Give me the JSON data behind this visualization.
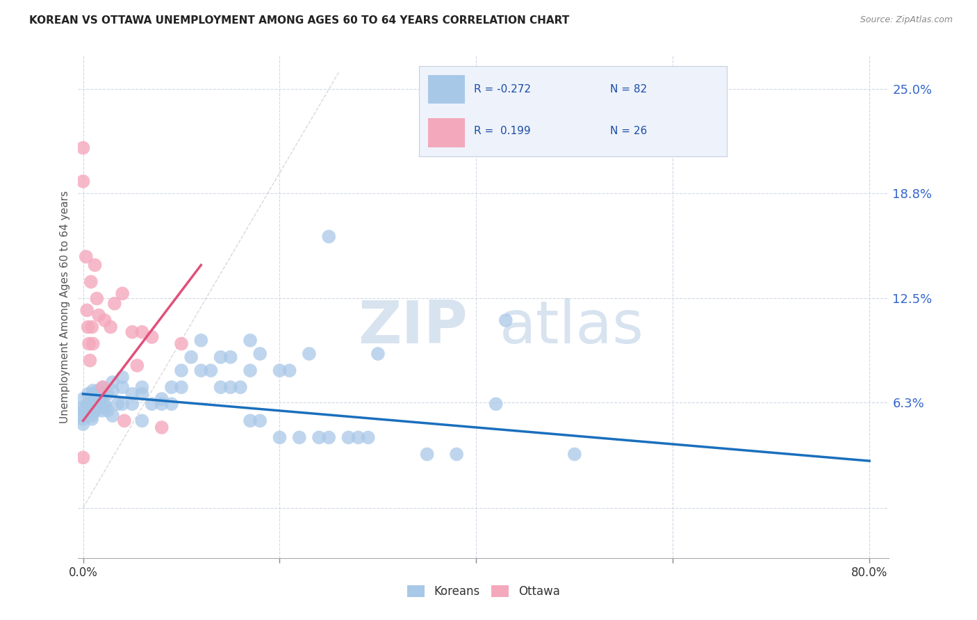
{
  "title": "KOREAN VS OTTAWA UNEMPLOYMENT AMONG AGES 60 TO 64 YEARS CORRELATION CHART",
  "source": "Source: ZipAtlas.com",
  "ylabel": "Unemployment Among Ages 60 to 64 years",
  "xlim": [
    -0.005,
    0.82
  ],
  "ylim": [
    -0.03,
    0.27
  ],
  "ytick_values": [
    0.0,
    0.063,
    0.125,
    0.188,
    0.25
  ],
  "ytick_labels": [
    "",
    "6.3%",
    "12.5%",
    "18.8%",
    "25.0%"
  ],
  "xtick_values": [
    0.0,
    0.2,
    0.4,
    0.6,
    0.8
  ],
  "xticklabels": [
    "0.0%",
    "",
    "",
    "",
    "80.0%"
  ],
  "koreans_R": -0.272,
  "koreans_N": 82,
  "ottawa_R": 0.199,
  "ottawa_N": 26,
  "korean_color": "#a8c8e8",
  "ottawa_color": "#f4a8bc",
  "korean_line_color": "#1a6fbd",
  "ottawa_line_color": "#e0507a",
  "diagonal_line_color": "#c8c8c8",
  "korean_x": [
    0.0,
    0.0,
    0.0,
    0.0,
    0.0,
    0.0,
    0.005,
    0.005,
    0.007,
    0.008,
    0.008,
    0.009,
    0.009,
    0.01,
    0.01,
    0.01,
    0.01,
    0.012,
    0.012,
    0.013,
    0.015,
    0.015,
    0.016,
    0.016,
    0.018,
    0.019,
    0.02,
    0.02,
    0.022,
    0.023,
    0.025,
    0.025,
    0.03,
    0.03,
    0.03,
    0.035,
    0.04,
    0.04,
    0.04,
    0.05,
    0.05,
    0.06,
    0.06,
    0.06,
    0.07,
    0.08,
    0.08,
    0.09,
    0.09,
    0.1,
    0.1,
    0.11,
    0.12,
    0.12,
    0.13,
    0.14,
    0.14,
    0.15,
    0.15,
    0.16,
    0.17,
    0.17,
    0.17,
    0.18,
    0.18,
    0.2,
    0.2,
    0.21,
    0.22,
    0.23,
    0.24,
    0.25,
    0.25,
    0.27,
    0.28,
    0.29,
    0.3,
    0.35,
    0.38,
    0.42,
    0.43,
    0.5
  ],
  "korean_y": [
    0.065,
    0.06,
    0.058,
    0.055,
    0.053,
    0.05,
    0.068,
    0.062,
    0.06,
    0.06,
    0.058,
    0.055,
    0.053,
    0.07,
    0.068,
    0.062,
    0.058,
    0.068,
    0.062,
    0.058,
    0.07,
    0.068,
    0.062,
    0.06,
    0.065,
    0.058,
    0.072,
    0.068,
    0.062,
    0.06,
    0.068,
    0.058,
    0.075,
    0.07,
    0.055,
    0.062,
    0.078,
    0.072,
    0.062,
    0.068,
    0.062,
    0.072,
    0.068,
    0.052,
    0.062,
    0.065,
    0.062,
    0.072,
    0.062,
    0.082,
    0.072,
    0.09,
    0.1,
    0.082,
    0.082,
    0.09,
    0.072,
    0.09,
    0.072,
    0.072,
    0.1,
    0.082,
    0.052,
    0.092,
    0.052,
    0.082,
    0.042,
    0.082,
    0.042,
    0.092,
    0.042,
    0.162,
    0.042,
    0.042,
    0.042,
    0.042,
    0.092,
    0.032,
    0.032,
    0.062,
    0.112,
    0.032
  ],
  "ottawa_x": [
    0.0,
    0.0,
    0.0,
    0.003,
    0.004,
    0.005,
    0.006,
    0.007,
    0.008,
    0.009,
    0.01,
    0.012,
    0.014,
    0.016,
    0.02,
    0.022,
    0.028,
    0.032,
    0.04,
    0.042,
    0.05,
    0.055,
    0.06,
    0.07,
    0.08,
    0.1
  ],
  "ottawa_y": [
    0.215,
    0.195,
    0.03,
    0.15,
    0.118,
    0.108,
    0.098,
    0.088,
    0.135,
    0.108,
    0.098,
    0.145,
    0.125,
    0.115,
    0.072,
    0.112,
    0.108,
    0.122,
    0.128,
    0.052,
    0.105,
    0.085,
    0.105,
    0.102,
    0.048,
    0.098
  ],
  "watermark_zip": "ZIP",
  "watermark_atlas": "atlas",
  "background_color": "#ffffff",
  "grid_color": "#d0d8e8",
  "legend_bg": "#eef2fa",
  "legend_border": "#c8d0e0"
}
